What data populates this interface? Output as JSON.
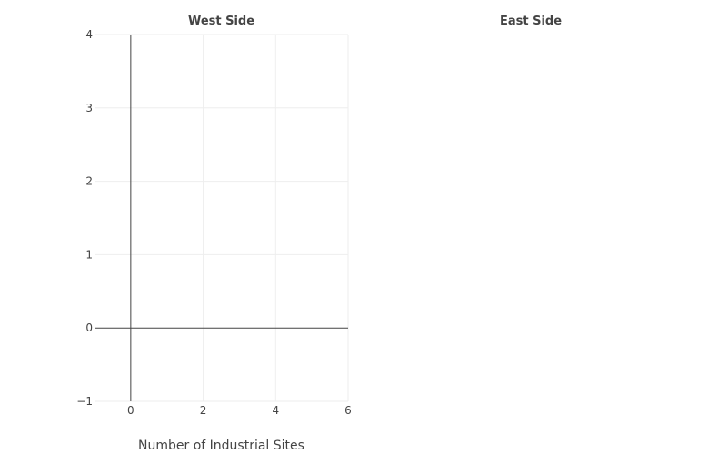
{
  "chart_data": [
    {
      "type": "scatter",
      "title": "West Side",
      "xlabel": "Number of Industrial Sites",
      "ylabel": "",
      "xlim": [
        -1,
        6
      ],
      "ylim": [
        -1,
        4
      ],
      "xticks": [
        0,
        2,
        4,
        6
      ],
      "xtick_labels": [
        "0",
        "2",
        "4",
        "6"
      ],
      "yticks": [
        -1,
        0,
        1,
        2,
        3,
        4
      ],
      "ytick_labels": [
        "−1",
        "0",
        "1",
        "2",
        "3",
        "4"
      ],
      "grid": true,
      "zeroline": true,
      "series": []
    },
    {
      "type": "scatter",
      "title": "East Side",
      "xlabel": "",
      "ylabel": "",
      "grid": false,
      "series": []
    }
  ],
  "colors": {
    "grid": "#eeeeee",
    "zeroline": "#444444",
    "text": "#444444",
    "background": "#ffffff"
  }
}
